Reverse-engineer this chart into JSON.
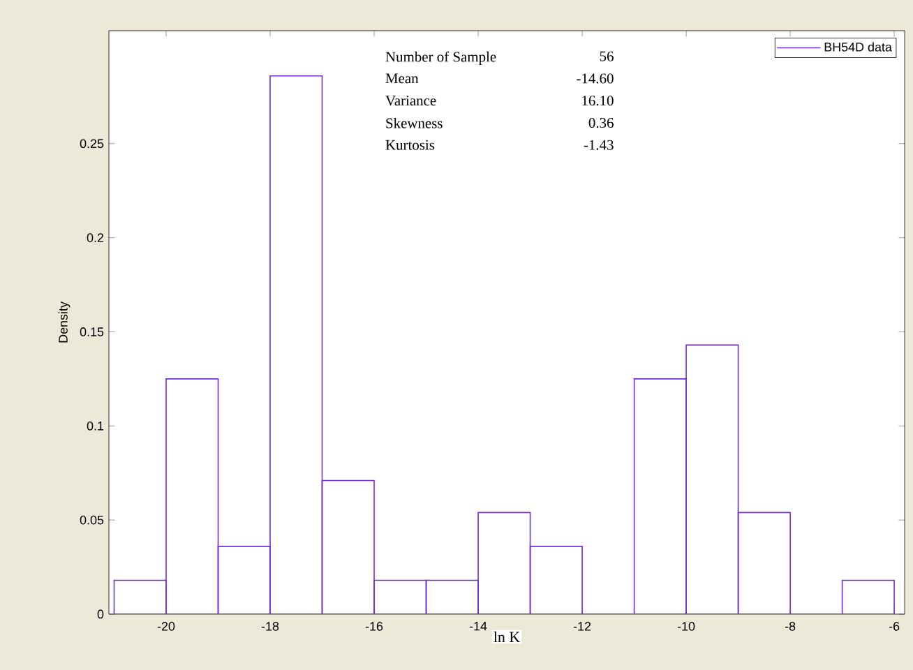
{
  "chart_data": {
    "type": "histogram",
    "xlabel": "ln K",
    "ylabel": "Density",
    "bins": [
      -21,
      -20,
      -19,
      -18,
      -17,
      -16,
      -15,
      -14,
      -13,
      -12,
      -11,
      -10,
      -9,
      -8,
      -7,
      -6
    ],
    "series": [
      {
        "name": "BH54D data",
        "color": "#7030d0",
        "values": [
          0.018,
          0.125,
          0.036,
          0.286,
          0.071,
          0.018,
          0.018,
          0.054,
          0.036,
          0,
          0.125,
          0.143,
          0.054,
          0,
          0.018
        ]
      }
    ],
    "xlim": [
      -21.1,
      -5.8
    ],
    "ylim": [
      0,
      0.31
    ],
    "xticks": [
      -20,
      -18,
      -16,
      -14,
      -12,
      -10,
      -8,
      -6
    ],
    "yticks": [
      0,
      0.05,
      0.1,
      0.15,
      0.2,
      0.25
    ],
    "legend": "top right",
    "grid": false,
    "annotations": [
      "Number of Sample",
      "56",
      "Mean",
      "-14.60",
      "Variance",
      "16.10",
      "Skewness",
      "0.36",
      "Kurtosis",
      "-1.43"
    ]
  }
}
